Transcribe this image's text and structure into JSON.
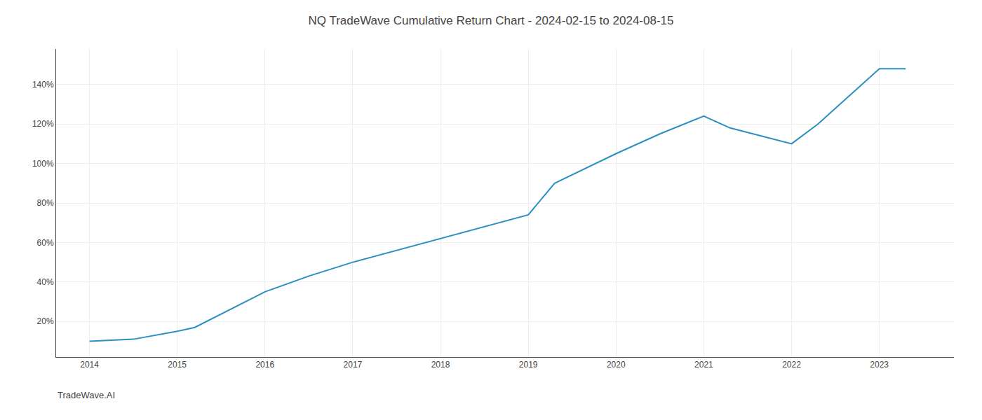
{
  "chart_data": {
    "type": "line",
    "title": "NQ TradeWave Cumulative Return Chart - 2024-02-15 to 2024-08-15",
    "annotations": [
      "TradeWave.AI"
    ],
    "x": [
      2014,
      2014.5,
      2015,
      2015.2,
      2016,
      2016.5,
      2017,
      2017.5,
      2018,
      2018.5,
      2019,
      2019.3,
      2020,
      2020.5,
      2021,
      2021.3,
      2022,
      2022.3,
      2023,
      2023.3
    ],
    "values": [
      10,
      11,
      15,
      17,
      35,
      43,
      50,
      56,
      62,
      68,
      74,
      90,
      105,
      115,
      124,
      118,
      110,
      120,
      148,
      148
    ],
    "color": "#2b8fc0",
    "xlim": [
      2013.62,
      2023.85
    ],
    "xticks": [
      2014,
      2015,
      2016,
      2017,
      2018,
      2019,
      2020,
      2021,
      2022,
      2023
    ],
    "ylim": [
      2,
      158
    ],
    "yticks": [
      {
        "value": 20,
        "label": "20%"
      },
      {
        "value": 40,
        "label": "40%"
      },
      {
        "value": 60,
        "label": "60%"
      },
      {
        "value": 80,
        "label": "80%"
      },
      {
        "value": 100,
        "label": "100%"
      },
      {
        "value": 120,
        "label": "120%"
      },
      {
        "value": 140,
        "label": "140%"
      }
    ],
    "grid": true
  }
}
